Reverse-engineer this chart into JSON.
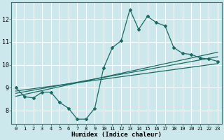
{
  "xlabel": "Humidex (Indice chaleur)",
  "bg_color": "#cce8ec",
  "grid_color": "#ffffff",
  "line_color": "#1a6b62",
  "xlim": [
    -0.5,
    23.5
  ],
  "ylim": [
    7.4,
    12.75
  ],
  "yticks": [
    8,
    9,
    10,
    11,
    12
  ],
  "xticks": [
    0,
    1,
    2,
    3,
    4,
    5,
    6,
    7,
    8,
    9,
    10,
    11,
    12,
    13,
    14,
    15,
    16,
    17,
    18,
    19,
    20,
    21,
    22,
    23
  ],
  "main_x": [
    0,
    1,
    2,
    3,
    4,
    5,
    6,
    7,
    8,
    9,
    10,
    11,
    12,
    13,
    14,
    15,
    16,
    17,
    18,
    19,
    20,
    21,
    22,
    23
  ],
  "main_y": [
    9.0,
    8.6,
    8.55,
    8.8,
    8.8,
    8.35,
    8.1,
    7.62,
    7.62,
    8.1,
    9.85,
    10.75,
    11.05,
    12.42,
    11.55,
    12.12,
    11.85,
    11.7,
    10.75,
    10.5,
    10.45,
    10.3,
    10.25,
    10.15
  ],
  "line1_x": [
    0,
    23
  ],
  "line1_y": [
    8.75,
    10.35
  ],
  "line2_x": [
    0,
    23
  ],
  "line2_y": [
    8.62,
    10.55
  ],
  "line3_x": [
    0,
    23
  ],
  "line3_y": [
    8.85,
    10.05
  ]
}
